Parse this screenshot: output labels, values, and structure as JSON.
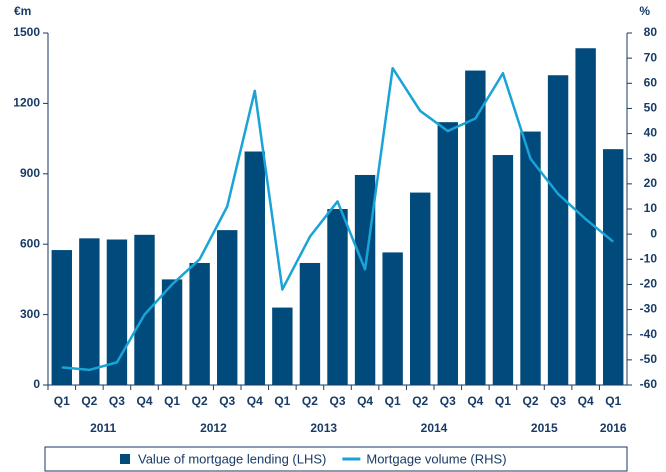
{
  "chart_data": {
    "type": "bar-line",
    "ylabel": "€m",
    "y2label": "%",
    "categories": [
      "Q1",
      "Q2",
      "Q3",
      "Q4",
      "Q1",
      "Q2",
      "Q3",
      "Q4",
      "Q1",
      "Q2",
      "Q3",
      "Q4",
      "Q1",
      "Q2",
      "Q3",
      "Q4",
      "Q1",
      "Q2",
      "Q3",
      "Q4",
      "Q1"
    ],
    "x_groups": [
      "2011",
      "2012",
      "2013",
      "2014",
      "2015",
      "2016"
    ],
    "series": [
      {
        "name": "Value of mortgage lending (LHS)",
        "type": "bar",
        "axis": "y",
        "color": "#004a7c",
        "values": [
          575,
          625,
          620,
          640,
          450,
          520,
          660,
          995,
          330,
          520,
          750,
          895,
          565,
          820,
          1120,
          1340,
          980,
          1080,
          1320,
          1435,
          1005
        ]
      },
      {
        "name": "Mortgage volume (RHS)",
        "type": "line",
        "axis": "y2",
        "color": "#1aa3d6",
        "values": [
          -53,
          -54,
          -51,
          -32,
          -20,
          -10,
          11,
          57,
          -22,
          -1,
          13,
          -14,
          66,
          49,
          41,
          46,
          64,
          30,
          16,
          6,
          -3
        ]
      }
    ],
    "ylim": [
      0,
      1500
    ],
    "yticks": [
      0,
      300,
      600,
      900,
      1200,
      1500
    ],
    "y2lim": [
      -60,
      80
    ],
    "y2ticks": [
      -60,
      -50,
      -40,
      -30,
      -20,
      -10,
      0,
      10,
      20,
      30,
      40,
      50,
      60,
      70,
      80
    ],
    "grid": false,
    "legend": "bottom"
  }
}
